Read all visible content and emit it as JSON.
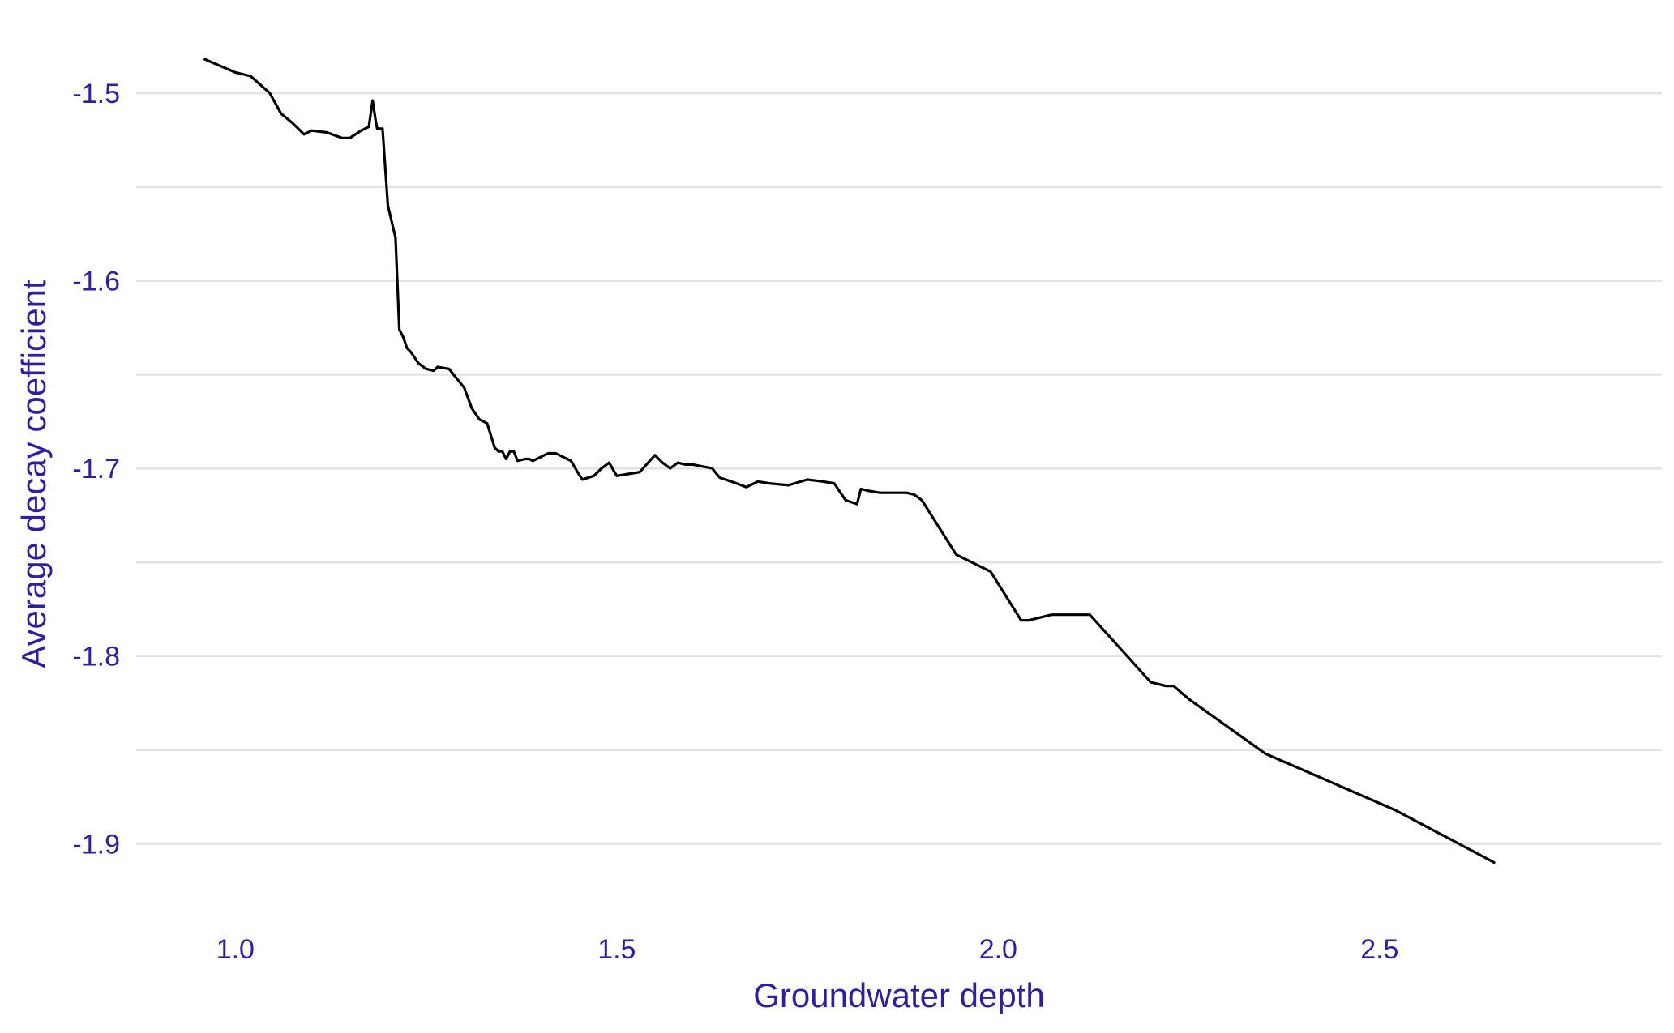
{
  "chart_data": {
    "type": "line",
    "title": "",
    "xlabel": "Groundwater depth",
    "ylabel": "Average decay coefficient",
    "xlim": [
      0.87,
      2.87
    ],
    "ylim": [
      -1.934,
      -1.472
    ],
    "x_ticks": [
      1.0,
      1.5,
      2.0,
      2.5
    ],
    "x_tick_labels": [
      "1.0",
      "1.5",
      "2.0",
      "2.5"
    ],
    "y_ticks": [
      -1.5,
      -1.6,
      -1.7,
      -1.8,
      -1.9
    ],
    "y_tick_labels": [
      "-1.5",
      "-1.6",
      "-1.7",
      "-1.8",
      "-1.9"
    ],
    "y_minor_gridlines": [
      -1.55,
      -1.65,
      -1.75,
      -1.85
    ],
    "grid": "horizontal",
    "legend": "none",
    "colors": {
      "line": "#000000",
      "grid": "#e3e3e3",
      "text": "#2e1f9e"
    },
    "series": [
      {
        "x": [
          0.96,
          1.0,
          1.02,
          1.045,
          1.06,
          1.075,
          1.09,
          1.1,
          1.12,
          1.14,
          1.15,
          1.165,
          1.175,
          1.18,
          1.184,
          1.186,
          1.193,
          1.2,
          1.21,
          1.215,
          1.22,
          1.225,
          1.23,
          1.24,
          1.25,
          1.26,
          1.265,
          1.28,
          1.3,
          1.31,
          1.32,
          1.33,
          1.34,
          1.345,
          1.35,
          1.355,
          1.36,
          1.365,
          1.37,
          1.38,
          1.385,
          1.39,
          1.4,
          1.41,
          1.42,
          1.43,
          1.44,
          1.45,
          1.455,
          1.47,
          1.48,
          1.49,
          1.5,
          1.515,
          1.53,
          1.55,
          1.56,
          1.57,
          1.58,
          1.59,
          1.6,
          1.625,
          1.635,
          1.65,
          1.67,
          1.685,
          1.7,
          1.725,
          1.75,
          1.77,
          1.785,
          1.8,
          1.815,
          1.82,
          1.83,
          1.845,
          1.88,
          1.89,
          1.9,
          1.945,
          1.99,
          2.03,
          2.04,
          2.07,
          2.09,
          2.12,
          2.2,
          2.22,
          2.23,
          2.25,
          2.35,
          2.52,
          2.65
        ],
        "y": [
          -1.482,
          -1.489,
          -1.491,
          -1.5,
          -1.511,
          -1.516,
          -1.522,
          -1.52,
          -1.521,
          -1.524,
          -1.524,
          -1.52,
          -1.518,
          -1.504,
          -1.515,
          -1.519,
          -1.519,
          -1.56,
          -1.577,
          -1.626,
          -1.63,
          -1.636,
          -1.638,
          -1.644,
          -1.647,
          -1.648,
          -1.646,
          -1.647,
          -1.657,
          -1.668,
          -1.674,
          -1.676,
          -1.689,
          -1.691,
          -1.691,
          -1.695,
          -1.691,
          -1.691,
          -1.696,
          -1.695,
          -1.695,
          -1.696,
          -1.694,
          -1.692,
          -1.692,
          -1.694,
          -1.696,
          -1.703,
          -1.706,
          -1.704,
          -1.7,
          -1.697,
          -1.704,
          -1.703,
          -1.702,
          -1.693,
          -1.697,
          -1.7,
          -1.697,
          -1.698,
          -1.698,
          -1.7,
          -1.705,
          -1.707,
          -1.71,
          -1.707,
          -1.708,
          -1.709,
          -1.706,
          -1.707,
          -1.708,
          -1.717,
          -1.719,
          -1.711,
          -1.712,
          -1.713,
          -1.713,
          -1.714,
          -1.717,
          -1.746,
          -1.755,
          -1.781,
          -1.781,
          -1.778,
          -1.778,
          -1.778,
          -1.814,
          -1.816,
          -1.816,
          -1.823,
          -1.852,
          -1.882,
          -1.91
        ]
      }
    ]
  }
}
